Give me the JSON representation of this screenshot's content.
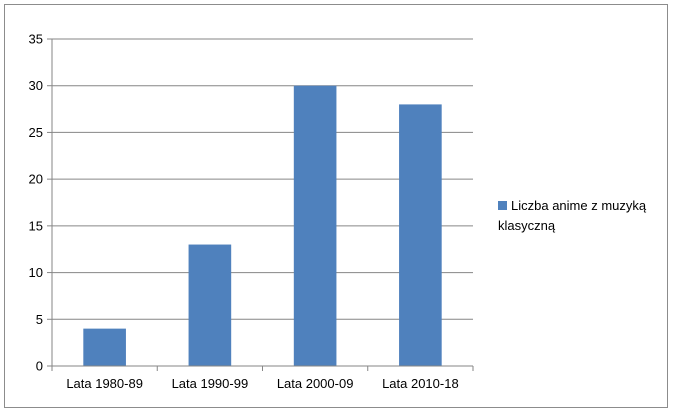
{
  "chart_data": {
    "type": "bar",
    "title": "",
    "xlabel": "",
    "ylabel": "",
    "categories": [
      "Lata 1980-89",
      "Lata 1990-99",
      "Lata 2000-09",
      "Lata 2010-18"
    ],
    "series": [
      {
        "name": "Liczba anime z muzyką klasyczną",
        "values": [
          4,
          13,
          30,
          28
        ],
        "color": "#4f81bd"
      }
    ],
    "ylim": [
      0,
      35
    ],
    "yticks": [
      0,
      5,
      10,
      15,
      20,
      25,
      30,
      35
    ],
    "grid": true,
    "legend_position": "right"
  }
}
